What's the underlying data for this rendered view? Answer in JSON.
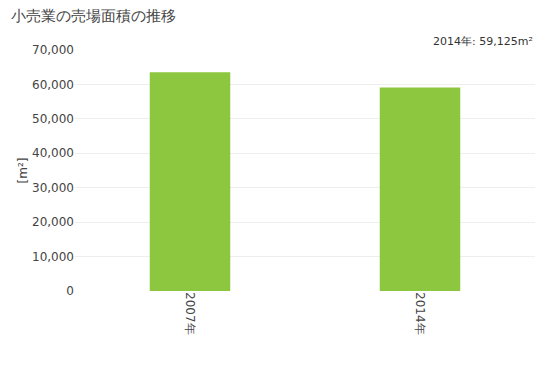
{
  "chart_data": {
    "type": "bar",
    "title": "小売業の売場面積の推移",
    "ylabel": "[m²]",
    "categories": [
      "2007年",
      "2014年"
    ],
    "values": [
      63536,
      59125
    ],
    "color": "#8DC63F",
    "ylim": [
      0,
      70000
    ],
    "yticks": [
      0,
      {
        "value": 10000,
        "label": "10,000"
      },
      {
        "value": 20000,
        "label": "20,000"
      },
      {
        "value": 30000,
        "label": "30,000"
      },
      {
        "value": 40000,
        "label": "40,000"
      },
      {
        "value": 50000,
        "label": "50,000"
      },
      {
        "value": 60000,
        "label": "60,000"
      },
      {
        "value": 70000,
        "label": "70,000"
      }
    ],
    "annotation": "2014年: 59,125m²",
    "grid": true
  }
}
